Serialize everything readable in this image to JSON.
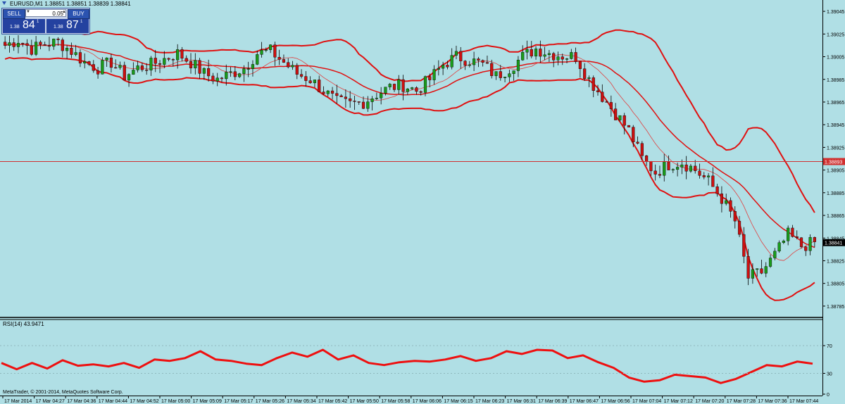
{
  "header": {
    "symbol_line": "EURUSD,M1  1.38851 1.38851 1.38839 1.38841"
  },
  "trade_panel": {
    "sell_label": "SELL",
    "buy_label": "BUY",
    "lot_value": "0.05",
    "sell_prefix": "1.38",
    "sell_big": "84",
    "sell_sup": "1",
    "buy_prefix": "1.38",
    "buy_big": "87",
    "buy_sup": "1"
  },
  "price_axis": {
    "ticks": [
      "1.39045",
      "1.39025",
      "1.39005",
      "1.38985",
      "1.38965",
      "1.38945",
      "1.38925",
      "1.38905",
      "1.38885",
      "1.38865",
      "1.38845",
      "1.38825",
      "1.38805",
      "1.38785"
    ],
    "current_price": "1.38841",
    "horizontal_line_price": "1.38893"
  },
  "indicator": {
    "label": "RSI(14) 43.9471",
    "levels": [
      "70",
      "30",
      "0"
    ]
  },
  "time_axis": {
    "labels": [
      "17 Mar 2014",
      "17 Mar 04:27",
      "17 Mar 04:36",
      "17 Mar 04:44",
      "17 Mar 04:52",
      "17 Mar 05:00",
      "17 Mar 05:09",
      "17 Mar 05:17",
      "17 Mar 05:26",
      "17 Mar 05:34",
      "17 Mar 05:42",
      "17 Mar 05:50",
      "17 Mar 05:58",
      "17 Mar 06:06",
      "17 Mar 06:15",
      "17 Mar 06:23",
      "17 Mar 06:31",
      "17 Mar 06:39",
      "17 Mar 06:47",
      "17 Mar 06:56",
      "17 Mar 07:04",
      "17 Mar 07:12",
      "17 Mar 07:20",
      "17 Mar 07:28",
      "17 Mar 07:36",
      "17 Mar 07:44"
    ]
  },
  "copyright": "MetaTrader, © 2001-2014, MetaQuotes Software Corp.",
  "colors": {
    "background": "#b0dfe5",
    "bull": "#1a9c1a",
    "bear": "#cc1010",
    "band": "#e01010",
    "rsi": "#ee1010",
    "hline": "#d03030"
  },
  "chart_data": {
    "type": "candlestick",
    "symbol": "EURUSD",
    "timeframe": "M1",
    "ylim": [
      1.38775,
      1.39055
    ],
    "rsi_ylim": [
      0,
      100
    ],
    "close_trace": [
      [
        0,
        1.39015
      ],
      [
        6,
        1.3902
      ],
      [
        12,
        1.39012
      ],
      [
        18,
        1.39016
      ],
      [
        24,
        1.39018
      ],
      [
        30,
        1.3901
      ],
      [
        36,
        1.39
      ],
      [
        42,
        1.38995
      ],
      [
        48,
        1.39
      ],
      [
        54,
        1.38988
      ],
      [
        60,
        1.38995
      ],
      [
        66,
        1.38998
      ],
      [
        72,
        1.39003
      ],
      [
        78,
        1.39008
      ],
      [
        84,
        1.39
      ],
      [
        90,
        1.3899
      ],
      [
        96,
        1.38985
      ],
      [
        102,
        1.3899
      ],
      [
        108,
        1.38995
      ],
      [
        114,
        1.39008
      ],
      [
        120,
        1.3901
      ],
      [
        126,
        1.39
      ],
      [
        132,
        1.3899
      ],
      [
        138,
        1.38985
      ],
      [
        144,
        1.38975
      ],
      [
        150,
        1.38965
      ],
      [
        156,
        1.38963
      ],
      [
        162,
        1.38965
      ],
      [
        168,
        1.38972
      ],
      [
        174,
        1.38978
      ],
      [
        180,
        1.3898
      ],
      [
        186,
        1.38975
      ],
      [
        192,
        1.38985
      ],
      [
        198,
        1.38998
      ],
      [
        204,
        1.39005
      ],
      [
        210,
        1.39002
      ],
      [
        216,
        1.38998
      ],
      [
        222,
        1.38988
      ],
      [
        228,
        1.38995
      ],
      [
        234,
        1.39005
      ],
      [
        240,
        1.39012
      ],
      [
        246,
        1.39008
      ],
      [
        252,
        1.39006
      ],
      [
        258,
        1.39005
      ],
      [
        264,
        1.38985
      ],
      [
        270,
        1.3897
      ],
      [
        276,
        1.38955
      ],
      [
        282,
        1.3894
      ],
      [
        288,
        1.38915
      ],
      [
        294,
        1.38903
      ],
      [
        300,
        1.3891
      ],
      [
        306,
        1.38912
      ],
      [
        312,
        1.38905
      ],
      [
        318,
        1.38895
      ],
      [
        324,
        1.3888
      ],
      [
        330,
        1.3886
      ],
      [
        336,
        1.3881
      ],
      [
        342,
        1.38815
      ],
      [
        348,
        1.3883
      ],
      [
        354,
        1.38848
      ],
      [
        360,
        1.38838
      ],
      [
        366,
        1.38841
      ]
    ],
    "rsi_trace": [
      [
        0,
        45
      ],
      [
        10,
        36
      ],
      [
        20,
        45
      ],
      [
        30,
        37
      ],
      [
        40,
        49
      ],
      [
        50,
        41
      ],
      [
        60,
        43
      ],
      [
        70,
        40
      ],
      [
        80,
        45
      ],
      [
        90,
        38
      ],
      [
        100,
        50
      ],
      [
        110,
        48
      ],
      [
        120,
        52
      ],
      [
        130,
        62
      ],
      [
        140,
        50
      ],
      [
        150,
        48
      ],
      [
        160,
        44
      ],
      [
        170,
        42
      ],
      [
        180,
        52
      ],
      [
        190,
        60
      ],
      [
        200,
        54
      ],
      [
        210,
        64
      ],
      [
        220,
        50
      ],
      [
        230,
        56
      ],
      [
        240,
        45
      ],
      [
        250,
        42
      ],
      [
        260,
        46
      ],
      [
        270,
        48
      ],
      [
        280,
        47
      ],
      [
        290,
        50
      ],
      [
        300,
        55
      ],
      [
        310,
        48
      ],
      [
        320,
        52
      ],
      [
        330,
        62
      ],
      [
        340,
        58
      ],
      [
        350,
        64
      ],
      [
        360,
        63
      ],
      [
        370,
        52
      ],
      [
        380,
        56
      ],
      [
        390,
        46
      ],
      [
        400,
        38
      ],
      [
        410,
        24
      ],
      [
        420,
        18
      ],
      [
        430,
        20
      ],
      [
        440,
        28
      ],
      [
        450,
        26
      ],
      [
        460,
        24
      ],
      [
        470,
        16
      ],
      [
        480,
        22
      ],
      [
        490,
        32
      ],
      [
        500,
        42
      ],
      [
        510,
        40
      ],
      [
        520,
        47
      ],
      [
        530,
        44
      ]
    ]
  }
}
